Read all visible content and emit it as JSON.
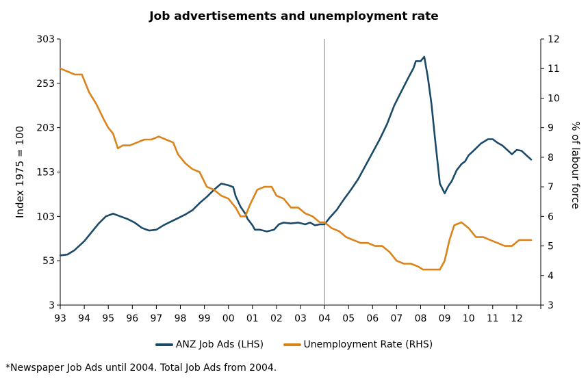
{
  "chart_data": {
    "type": "line",
    "title": "Job advertisements and unemployment rate",
    "y_left_label": "Index 1975 = 100",
    "y_right_label": "% of labour force",
    "y_left_lim": [
      3,
      303
    ],
    "y_left_ticks": [
      "303",
      "253",
      "203",
      "153",
      "103",
      "53",
      "3"
    ],
    "y_right_lim": [
      3,
      12
    ],
    "y_right_ticks": [
      "12",
      "11",
      "10",
      "9",
      "8",
      "7",
      "6",
      "5",
      "4",
      "3"
    ],
    "x_lim": [
      1993,
      2013
    ],
    "x_tick_labels": [
      "93",
      "94",
      "95",
      "96",
      "97",
      "98",
      "99",
      "00",
      "01",
      "02",
      "03",
      "04",
      "05",
      "06",
      "07",
      "08",
      "09",
      "10",
      "11",
      "12"
    ],
    "vline_x": 2004,
    "series": [
      {
        "name": "ANZ Job Ads (LHS)",
        "axis": "left",
        "color": "#1b4a68",
        "x": [
          1993.0,
          1993.3,
          1993.6,
          1994.0,
          1994.3,
          1994.6,
          1994.9,
          1995.2,
          1995.5,
          1995.8,
          1996.1,
          1996.4,
          1996.7,
          1997.0,
          1997.3,
          1997.6,
          1997.9,
          1998.2,
          1998.5,
          1998.8,
          1999.1,
          1999.4,
          1999.7,
          2000.0,
          2000.2,
          2000.3,
          2000.5,
          2000.7,
          2000.8,
          2001.0,
          2001.1,
          2001.3,
          2001.6,
          2001.9,
          2002.1,
          2002.3,
          2002.6,
          2002.9,
          2003.2,
          2003.4,
          2003.6,
          2003.8,
          2004.0,
          2004.2,
          2004.5,
          2004.8,
          2005.1,
          2005.4,
          2005.7,
          2006.0,
          2006.3,
          2006.6,
          2006.9,
          2007.2,
          2007.5,
          2007.7,
          2007.8,
          2008.0,
          2008.15,
          2008.3,
          2008.45,
          2008.6,
          2008.8,
          2009.0,
          2009.15,
          2009.3,
          2009.5,
          2009.7,
          2009.85,
          2010.0,
          2010.2,
          2010.5,
          2010.8,
          2011.0,
          2011.2,
          2011.4,
          2011.6,
          2011.8,
          2012.0,
          2012.2,
          2012.4,
          2012.6
        ],
        "values": [
          59,
          60,
          65,
          75,
          85,
          95,
          103,
          106,
          103,
          100,
          96,
          90,
          87,
          88,
          93,
          97,
          101,
          105,
          110,
          118,
          125,
          133,
          140,
          138,
          136,
          126,
          114,
          106,
          100,
          93,
          88,
          88,
          86,
          88,
          94,
          96,
          95,
          96,
          94,
          96,
          93,
          94,
          94,
          101,
          110,
          122,
          133,
          145,
          160,
          175,
          190,
          207,
          228,
          244,
          260,
          270,
          278,
          278,
          283,
          260,
          230,
          190,
          140,
          129,
          137,
          143,
          155,
          162,
          165,
          172,
          177,
          185,
          190,
          190,
          186,
          183,
          178,
          173,
          178,
          177,
          172,
          167
        ]
      },
      {
        "name": "Unemployment Rate (RHS)",
        "axis": "right",
        "color": "#d9831a",
        "x": [
          1993.0,
          1993.3,
          1993.6,
          1993.9,
          1994.2,
          1994.5,
          1994.8,
          1995.0,
          1995.2,
          1995.4,
          1995.6,
          1995.9,
          1996.2,
          1996.5,
          1996.8,
          1997.1,
          1997.4,
          1997.7,
          1997.9,
          1998.2,
          1998.5,
          1998.8,
          1999.1,
          1999.4,
          1999.7,
          2000.0,
          2000.3,
          2000.5,
          2000.7,
          2000.9,
          2001.2,
          2001.5,
          2001.8,
          2002.0,
          2002.3,
          2002.6,
          2002.9,
          2003.2,
          2003.5,
          2003.8,
          2004.0,
          2004.3,
          2004.6,
          2004.9,
          2005.2,
          2005.5,
          2005.8,
          2006.1,
          2006.4,
          2006.7,
          2007.0,
          2007.3,
          2007.6,
          2007.9,
          2008.1,
          2008.4,
          2008.6,
          2008.8,
          2009.0,
          2009.2,
          2009.4,
          2009.7,
          2010.0,
          2010.3,
          2010.6,
          2010.9,
          2011.2,
          2011.5,
          2011.8,
          2012.1,
          2012.4,
          2012.6
        ],
        "values": [
          11.0,
          10.9,
          10.8,
          10.8,
          10.2,
          9.8,
          9.3,
          9.0,
          8.8,
          8.3,
          8.4,
          8.4,
          8.5,
          8.6,
          8.6,
          8.7,
          8.6,
          8.5,
          8.1,
          7.8,
          7.6,
          7.5,
          7.0,
          6.9,
          6.7,
          6.6,
          6.3,
          6.0,
          6.0,
          6.4,
          6.9,
          7.0,
          7.0,
          6.7,
          6.6,
          6.3,
          6.3,
          6.1,
          6.0,
          5.8,
          5.8,
          5.6,
          5.5,
          5.3,
          5.2,
          5.1,
          5.1,
          5.0,
          5.0,
          4.8,
          4.5,
          4.4,
          4.4,
          4.3,
          4.2,
          4.2,
          4.2,
          4.2,
          4.5,
          5.2,
          5.7,
          5.8,
          5.6,
          5.3,
          5.3,
          5.2,
          5.1,
          5.0,
          5.0,
          5.2,
          5.2,
          5.2
        ]
      }
    ]
  },
  "footnote": "*Newspaper Job Ads until 2004. Total Job Ads from 2004."
}
